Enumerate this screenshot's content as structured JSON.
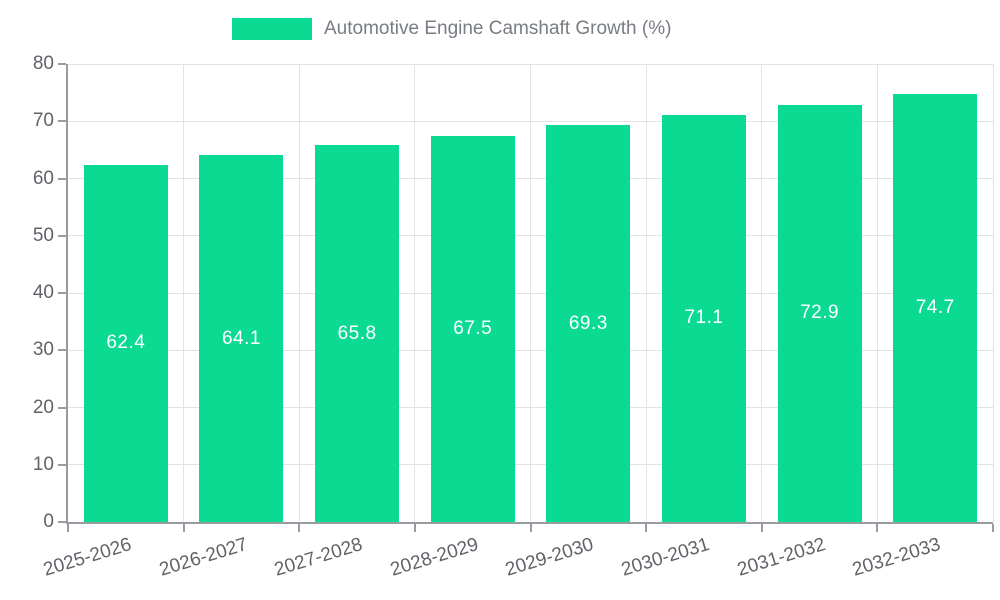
{
  "legend": {
    "label": "Automotive Engine Camshaft Growth (%)"
  },
  "chart_data": {
    "type": "bar",
    "title": "Automotive Engine Camshaft Growth (%)",
    "categories": [
      "2025-2026",
      "2026-2027",
      "2027-2028",
      "2028-2029",
      "2029-2030",
      "2030-2031",
      "2031-2032",
      "2032-2033"
    ],
    "series": [
      {
        "name": "Automotive Engine Camshaft Growth (%)",
        "values": [
          62.4,
          64.1,
          65.8,
          67.5,
          69.3,
          71.1,
          72.9,
          74.7
        ]
      }
    ],
    "value_labels_shown": true,
    "xlabel": "",
    "ylabel": "",
    "ylim": [
      0,
      80
    ],
    "yticks": [
      0,
      10,
      20,
      30,
      40,
      50,
      60,
      70,
      80
    ],
    "grid": true,
    "legend_position": "top",
    "colors": {
      "bar": "#0bdb92",
      "bar_value_label": "#ffffff",
      "axis_line": "#989ca1",
      "gridline": "#e0e3e8",
      "axis_text": "#5f6368",
      "legend_text": "#787d83",
      "background": "#ffffff"
    }
  }
}
